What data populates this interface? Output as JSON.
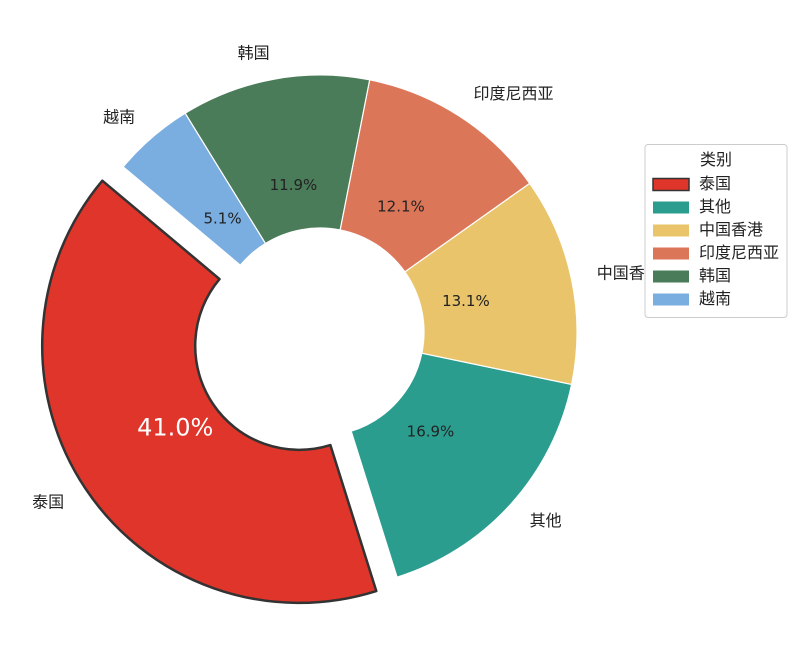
{
  "chart_data": {
    "type": "pie",
    "categories": [
      "泰国",
      "其他",
      "中国香港",
      "印度尼西亚",
      "韩国",
      "越南"
    ],
    "values": [
      41.0,
      16.9,
      13.1,
      12.1,
      11.9,
      5.1
    ],
    "value_labels": [
      "41.0%",
      "16.9%",
      "13.1%",
      "12.1%",
      "11.9%",
      "5.1%"
    ],
    "colors": [
      "#e0352a",
      "#2a9d8f",
      "#e9c46a",
      "#dc7659",
      "#4a7c59",
      "#7aade0"
    ],
    "legend_title": "类别",
    "legend_loc": "center right"
  }
}
